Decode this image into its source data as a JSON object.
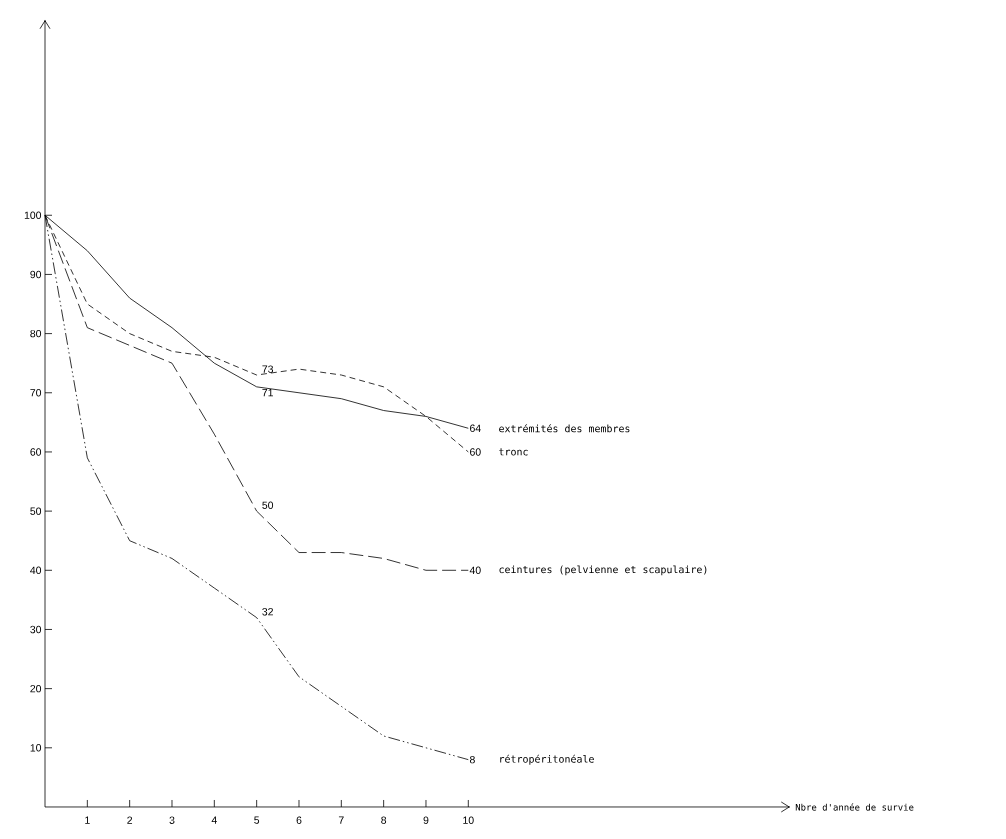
{
  "chart_data": {
    "type": "line",
    "xlabel": "Nbre d'année de survie",
    "x": [
      0,
      1,
      2,
      3,
      4,
      5,
      6,
      7,
      8,
      9,
      10
    ],
    "series": [
      {
        "name": "extrémités des membres",
        "color": "#000000",
        "line_style": "solid",
        "values": [
          100,
          94,
          86,
          81,
          75,
          71,
          70,
          69,
          67,
          66,
          64
        ],
        "value_labels": [
          null,
          null,
          null,
          null,
          null,
          "71",
          null,
          null,
          null,
          null,
          "64"
        ]
      },
      {
        "name": "tronc",
        "color": "#000000",
        "line_style": "dashed",
        "values": [
          100,
          85,
          80,
          77,
          76,
          73,
          74,
          73,
          71,
          66,
          60
        ],
        "value_labels": [
          null,
          null,
          null,
          null,
          null,
          "73",
          null,
          null,
          null,
          null,
          "60"
        ]
      },
      {
        "name": "ceintures (pelvienne et scapulaire)",
        "color": "#000000",
        "line_style": "longdashed",
        "values": [
          100,
          81,
          78,
          75,
          63,
          50,
          43,
          43,
          42,
          40,
          40
        ],
        "value_labels": [
          null,
          null,
          null,
          null,
          null,
          "50",
          null,
          null,
          null,
          null,
          "40"
        ]
      },
      {
        "name": "rétropéritonéale",
        "color": "#000000",
        "line_style": "dashdotdotted",
        "values": [
          100,
          59,
          45,
          42,
          37,
          32,
          22,
          17,
          12,
          10,
          8
        ],
        "value_labels": [
          null,
          null,
          null,
          null,
          null,
          "32",
          null,
          null,
          null,
          null,
          "8"
        ]
      }
    ],
    "xlim": [
      0,
      17.6
    ],
    "ylim": [
      0,
      133
    ],
    "xticks": [
      1,
      2,
      3,
      4,
      5,
      6,
      7,
      8,
      9,
      10
    ],
    "yticks": [
      10,
      20,
      30,
      40,
      50,
      60,
      70,
      80,
      90,
      100
    ],
    "grid": false,
    "marker": "none"
  }
}
